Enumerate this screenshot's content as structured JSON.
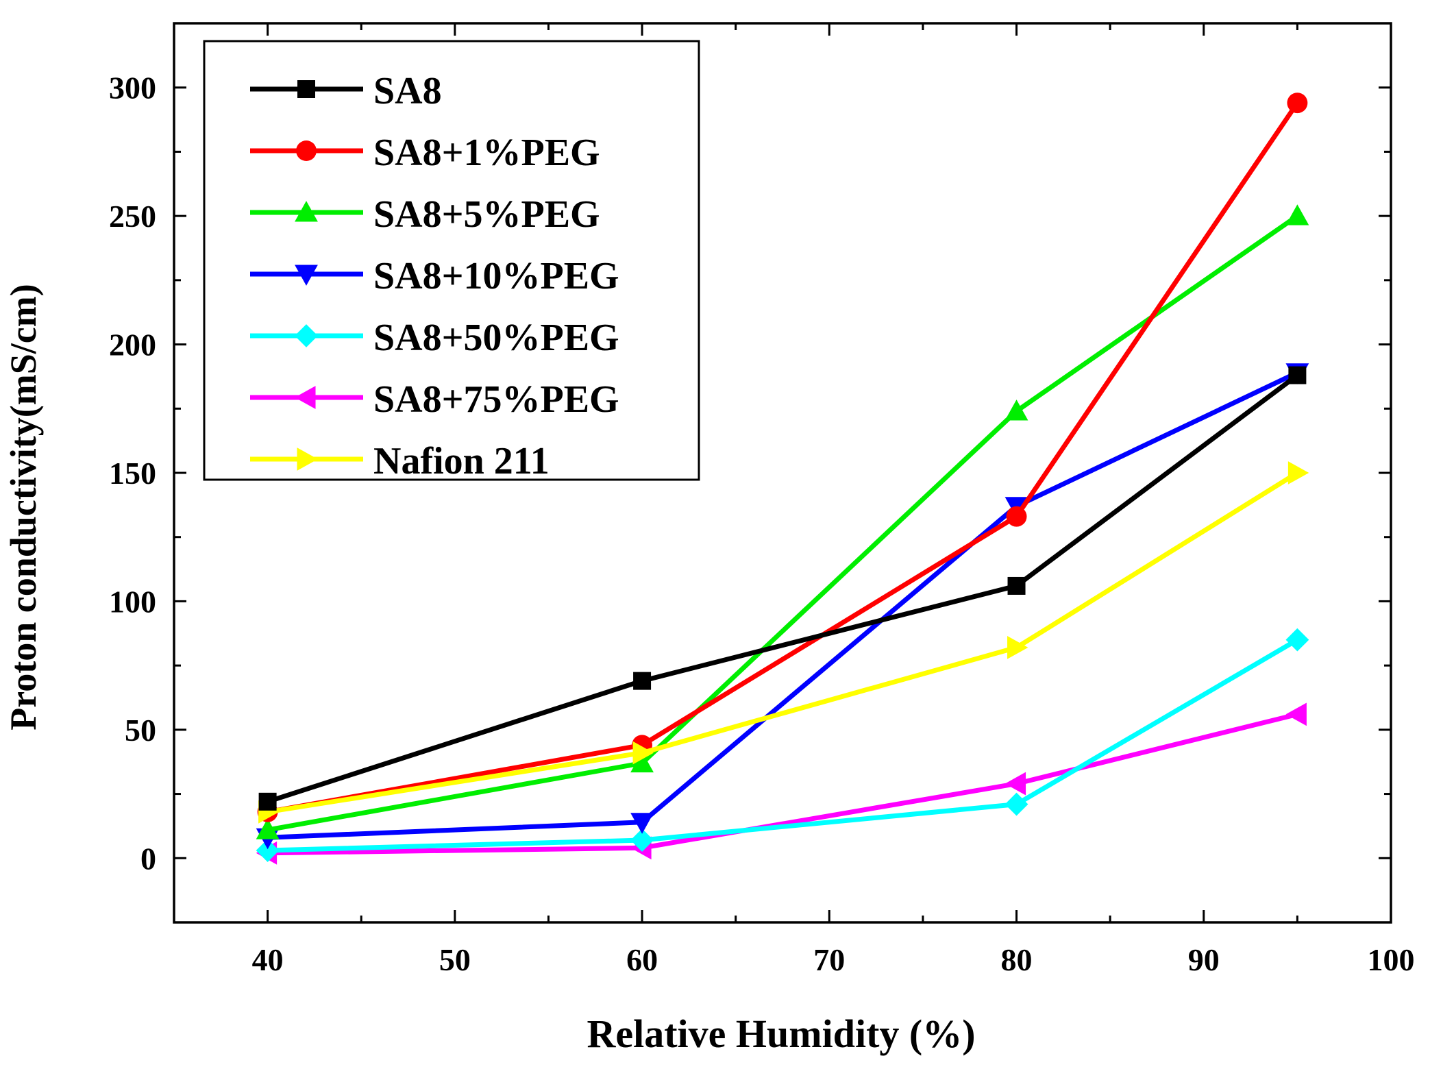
{
  "chart_data": {
    "type": "line",
    "title": "",
    "xlabel": "Relative Humidity (%)",
    "ylabel": "Proton conductivity(mS/cm)",
    "xlim": [
      35,
      100
    ],
    "ylim": [
      -25,
      325
    ],
    "x_ticks": [
      40,
      50,
      60,
      70,
      80,
      90,
      100
    ],
    "y_ticks": [
      0,
      50,
      100,
      150,
      200,
      250,
      300
    ],
    "x_tick_labels": [
      "40",
      "50",
      "60",
      "70",
      "80",
      "90",
      "100"
    ],
    "y_tick_labels": [
      "0",
      "50",
      "100",
      "150",
      "200",
      "250",
      "300"
    ],
    "grid": false,
    "legend_position": "top-left",
    "x": [
      40,
      60,
      80,
      95
    ],
    "series": [
      {
        "name": "SA8",
        "color": "#000000",
        "marker": "square",
        "values": [
          22,
          69,
          106,
          188
        ]
      },
      {
        "name": "SA8+1%PEG",
        "color": "#ff0000",
        "marker": "circle",
        "values": [
          18,
          44,
          133,
          294
        ]
      },
      {
        "name": "SA8+5%PEG",
        "color": "#00ee00",
        "marker": "triangle-up",
        "values": [
          11,
          37,
          174,
          250
        ]
      },
      {
        "name": "SA8+10%PEG",
        "color": "#0000ff",
        "marker": "triangle-down",
        "values": [
          8,
          14,
          137,
          189
        ]
      },
      {
        "name": "SA8+50%PEG",
        "color": "#00ffff",
        "marker": "diamond",
        "values": [
          3,
          7,
          21,
          85
        ]
      },
      {
        "name": "SA8+75%PEG",
        "color": "#ff00ff",
        "marker": "triangle-left",
        "values": [
          2,
          4,
          29,
          56
        ]
      },
      {
        "name": "Nafion 211",
        "color": "#ffff00",
        "marker": "triangle-right",
        "values": [
          18,
          41,
          82,
          150
        ]
      }
    ]
  }
}
